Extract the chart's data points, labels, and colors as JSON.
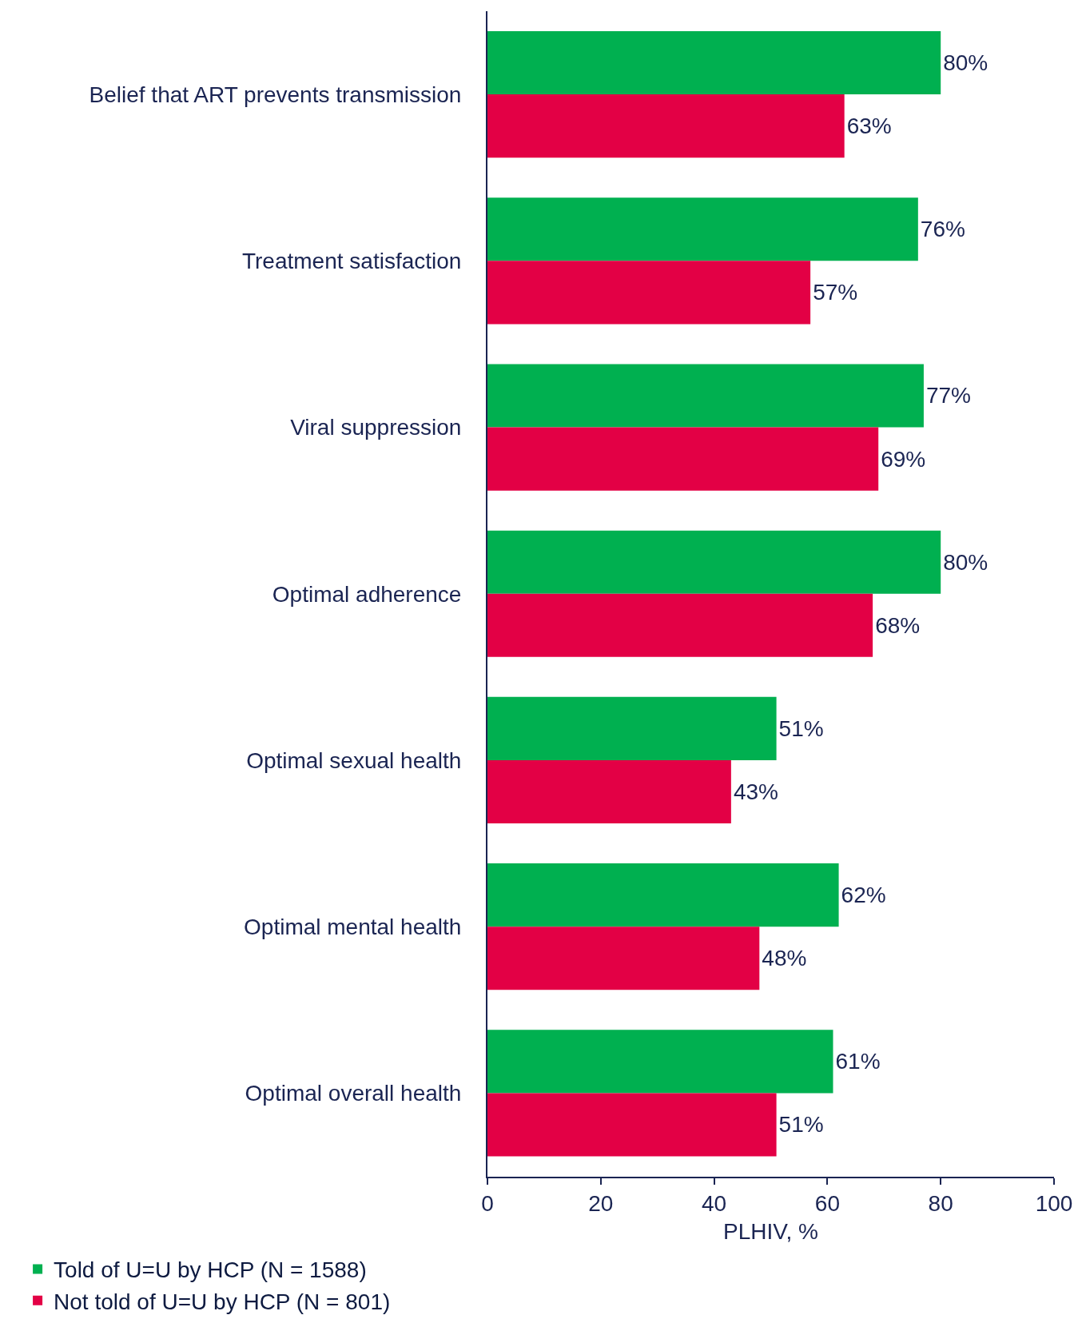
{
  "chart_data": {
    "type": "bar",
    "orientation": "horizontal",
    "categories": [
      "Belief that ART prevents transmission",
      "Treatment satisfaction",
      "Viral suppression",
      "Optimal adherence",
      "Optimal sexual health",
      "Optimal mental health",
      "Optimal overall health"
    ],
    "series": [
      {
        "name": "Told of U=U by HCP (N = 1588)",
        "color": "#00b050",
        "values": [
          80,
          76,
          77,
          80,
          51,
          62,
          61
        ],
        "value_labels": [
          "80%",
          "76%",
          "77%",
          "80%",
          "51%",
          "62%",
          "61%"
        ]
      },
      {
        "name": "Not told of U=U by HCP (N = 801)",
        "color": "#e30045",
        "values": [
          63,
          57,
          69,
          68,
          43,
          48,
          51
        ],
        "value_labels": [
          "63%",
          "57%",
          "69%",
          "68%",
          "43%",
          "48%",
          "51%"
        ]
      }
    ],
    "xlabel": "PLHIV, %",
    "xlim": [
      0,
      100
    ],
    "xticks": [
      0,
      20,
      40,
      60,
      80,
      100
    ],
    "legend": "bottom"
  }
}
